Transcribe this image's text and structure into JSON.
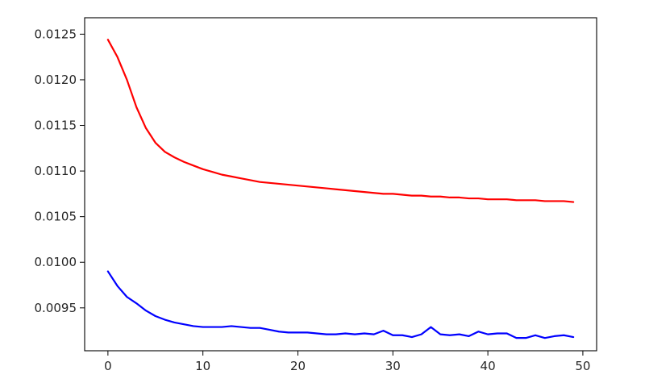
{
  "chart_data": {
    "type": "line",
    "title": "",
    "xlabel": "",
    "ylabel": "",
    "xlim": [
      -2.45,
      51.45
    ],
    "ylim": [
      0.00903,
      0.01268
    ],
    "grid": false,
    "legend": "none",
    "x_ticks": [
      0,
      10,
      20,
      30,
      40,
      50
    ],
    "x_tick_labels": [
      "0",
      "10",
      "20",
      "30",
      "40",
      "50"
    ],
    "y_ticks": [
      0.0095,
      0.01,
      0.0105,
      0.011,
      0.0115,
      0.012,
      0.0125
    ],
    "y_tick_labels": [
      "0.0095",
      "0.0100",
      "0.0105",
      "0.0110",
      "0.0115",
      "0.0120",
      "0.0125"
    ],
    "x": [
      0,
      1,
      2,
      3,
      4,
      5,
      6,
      7,
      8,
      9,
      10,
      11,
      12,
      13,
      14,
      15,
      16,
      17,
      18,
      19,
      20,
      21,
      22,
      23,
      24,
      25,
      26,
      27,
      28,
      29,
      30,
      31,
      32,
      33,
      34,
      35,
      36,
      37,
      38,
      39,
      40,
      41,
      42,
      43,
      44,
      45,
      46,
      47,
      48,
      49
    ],
    "series": [
      {
        "color": "#ff0000",
        "values": [
          0.01244,
          0.01225,
          0.012,
          0.0117,
          0.01147,
          0.01131,
          0.01121,
          0.01115,
          0.0111,
          0.01106,
          0.01102,
          0.01099,
          0.01096,
          0.01094,
          0.01092,
          0.0109,
          0.01088,
          0.01087,
          0.01086,
          0.01085,
          0.01084,
          0.01083,
          0.01082,
          0.01081,
          0.0108,
          0.01079,
          0.01078,
          0.01077,
          0.01076,
          0.01075,
          0.01075,
          0.01074,
          0.01073,
          0.01073,
          0.01072,
          0.01072,
          0.01071,
          0.01071,
          0.0107,
          0.0107,
          0.01069,
          0.01069,
          0.01069,
          0.01068,
          0.01068,
          0.01068,
          0.01067,
          0.01067,
          0.01067,
          0.01066
        ]
      },
      {
        "color": "#0000ff",
        "values": [
          0.0099,
          0.00974,
          0.00962,
          0.00955,
          0.00947,
          0.00941,
          0.00937,
          0.00934,
          0.00932,
          0.0093,
          0.00929,
          0.00929,
          0.00929,
          0.0093,
          0.00929,
          0.00928,
          0.00928,
          0.00926,
          0.00924,
          0.00923,
          0.00923,
          0.00923,
          0.00922,
          0.00921,
          0.00921,
          0.00922,
          0.00921,
          0.00922,
          0.00921,
          0.00925,
          0.0092,
          0.0092,
          0.00918,
          0.00921,
          0.00929,
          0.00921,
          0.0092,
          0.00921,
          0.00919,
          0.00924,
          0.00921,
          0.00922,
          0.00922,
          0.00917,
          0.00917,
          0.0092,
          0.00917,
          0.00919,
          0.0092,
          0.00918
        ]
      }
    ]
  }
}
